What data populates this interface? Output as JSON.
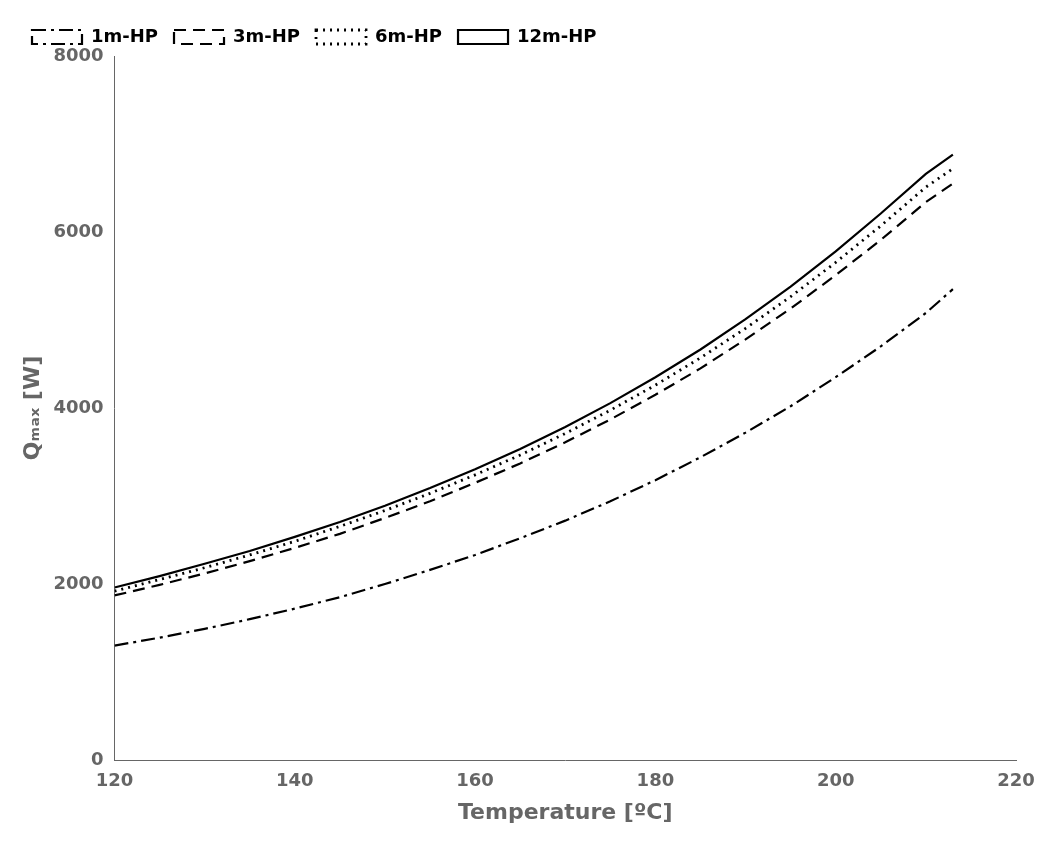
{
  "chart_data": {
    "type": "line",
    "xlabel": "Temperature [ºC]",
    "ylabel": "Qₘₐₓ [W]",
    "x": [
      120,
      125,
      130,
      135,
      140,
      145,
      150,
      155,
      160,
      165,
      170,
      175,
      180,
      185,
      190,
      195,
      200,
      205,
      210,
      213
    ],
    "series": [
      {
        "name": "1m-HP",
        "color": "#000000",
        "line_style": "dashdot",
        "values": [
          1300,
          1390,
          1490,
          1600,
          1720,
          1850,
          2000,
          2160,
          2330,
          2520,
          2720,
          2940,
          3180,
          3440,
          3720,
          4020,
          4350,
          4700,
          5080,
          5350
        ]
      },
      {
        "name": "3m-HP",
        "color": "#000000",
        "line_style": "dashed",
        "values": [
          1870,
          1990,
          2120,
          2260,
          2410,
          2570,
          2750,
          2940,
          3150,
          3370,
          3610,
          3870,
          4150,
          4450,
          4780,
          5130,
          5510,
          5910,
          6340,
          6550
        ]
      },
      {
        "name": "6m-HP",
        "color": "#000000",
        "line_style": "dotted",
        "values": [
          1920,
          2050,
          2185,
          2330,
          2485,
          2655,
          2835,
          3030,
          3240,
          3465,
          3710,
          3975,
          4260,
          4570,
          4905,
          5265,
          5655,
          6070,
          6510,
          6720
        ]
      },
      {
        "name": "12m-HP",
        "color": "#000000",
        "line_style": "solid",
        "values": [
          1960,
          2090,
          2230,
          2375,
          2535,
          2705,
          2890,
          3090,
          3305,
          3535,
          3785,
          4055,
          4350,
          4665,
          5010,
          5380,
          5780,
          6210,
          6660,
          6880
        ]
      }
    ],
    "xlim": [
      120,
      220
    ],
    "ylim": [
      0,
      8000
    ],
    "xticks": [
      120,
      140,
      160,
      180,
      200,
      220
    ],
    "yticks": [
      0,
      2000,
      4000,
      6000,
      8000
    ],
    "grid": false,
    "legend": "upper left"
  }
}
